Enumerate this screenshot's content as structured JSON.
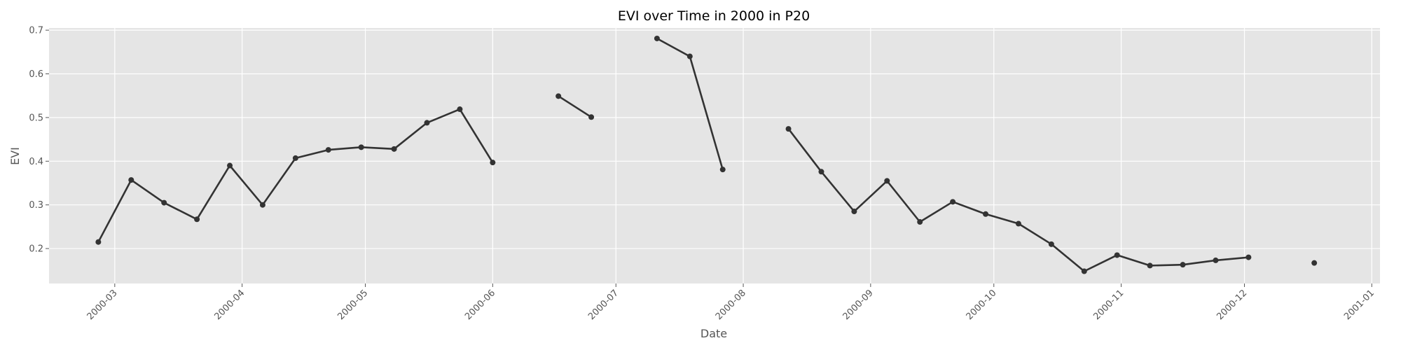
{
  "chart_data": {
    "type": "line",
    "title": "EVI over Time in 2000 in P20",
    "xlabel": "Date",
    "ylabel": "EVI",
    "xlim": [
      "2000-02-14",
      "2001-01-03"
    ],
    "ylim": [
      0.12,
      0.705
    ],
    "x_ticks": [
      "2000-03",
      "2000-04",
      "2000-05",
      "2000-06",
      "2000-07",
      "2000-08",
      "2000-09",
      "2000-10",
      "2000-11",
      "2000-12",
      "2001-01"
    ],
    "y_ticks": [
      "0.2",
      "0.3",
      "0.4",
      "0.5",
      "0.6",
      "0.7"
    ],
    "grid": true,
    "background": "#e5e5e5",
    "line_color": "#333333",
    "series": [
      {
        "points": [
          {
            "x": "2000-02-26",
            "y": 0.215
          },
          {
            "x": "2000-03-05",
            "y": 0.357
          },
          {
            "x": "2000-03-13",
            "y": 0.305
          },
          {
            "x": "2000-03-21",
            "y": 0.267
          },
          {
            "x": "2000-03-29",
            "y": 0.39
          },
          {
            "x": "2000-04-06",
            "y": 0.3
          },
          {
            "x": "2000-04-14",
            "y": 0.407
          },
          {
            "x": "2000-04-22",
            "y": 0.426
          },
          {
            "x": "2000-04-30",
            "y": 0.432
          },
          {
            "x": "2000-05-08",
            "y": 0.428
          },
          {
            "x": "2000-05-16",
            "y": 0.488
          },
          {
            "x": "2000-05-24",
            "y": 0.519
          },
          {
            "x": "2000-06-01",
            "y": 0.397
          },
          {
            "x": "2000-06-09",
            "y": null
          },
          {
            "x": "2000-06-17",
            "y": 0.549
          },
          {
            "x": "2000-06-25",
            "y": 0.501
          },
          {
            "x": "2000-07-03",
            "y": null
          },
          {
            "x": "2000-07-11",
            "y": 0.681
          },
          {
            "x": "2000-07-19",
            "y": 0.64
          },
          {
            "x": "2000-07-27",
            "y": 0.381
          },
          {
            "x": "2000-08-04",
            "y": null
          },
          {
            "x": "2000-08-12",
            "y": 0.474
          },
          {
            "x": "2000-08-20",
            "y": 0.376
          },
          {
            "x": "2000-08-28",
            "y": 0.285
          },
          {
            "x": "2000-09-05",
            "y": 0.355
          },
          {
            "x": "2000-09-13",
            "y": 0.261
          },
          {
            "x": "2000-09-21",
            "y": 0.307
          },
          {
            "x": "2000-09-29",
            "y": 0.279
          },
          {
            "x": "2000-10-07",
            "y": 0.257
          },
          {
            "x": "2000-10-15",
            "y": 0.21
          },
          {
            "x": "2000-10-23",
            "y": 0.148
          },
          {
            "x": "2000-10-31",
            "y": 0.185
          },
          {
            "x": "2000-11-08",
            "y": 0.161
          },
          {
            "x": "2000-11-16",
            "y": 0.163
          },
          {
            "x": "2000-11-24",
            "y": 0.173
          },
          {
            "x": "2000-12-02",
            "y": 0.18
          },
          {
            "x": "2000-12-10",
            "y": null
          },
          {
            "x": "2000-12-18",
            "y": 0.167
          }
        ]
      }
    ]
  }
}
